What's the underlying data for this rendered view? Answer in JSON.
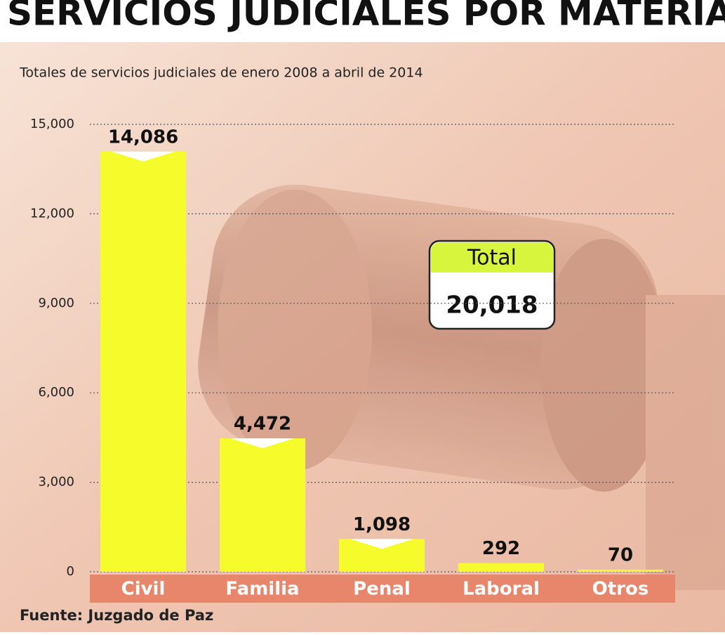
{
  "chart_data": {
    "type": "bar",
    "title": "SERVICIOS JUDICIALES POR MATERIA",
    "subtitle": "Totales de servicios judiciales de enero 2008 a abril de 2014",
    "categories": [
      "Civil",
      "Familia",
      "Penal",
      "Laboral",
      "Otros"
    ],
    "values": [
      14086,
      4472,
      1098,
      292,
      70
    ],
    "value_labels": [
      "14,086",
      "4,472",
      "1,098",
      "292",
      "70"
    ],
    "color": "#f6fb2c",
    "ylim": [
      0,
      15000
    ],
    "yticks": [
      0,
      {
        "value": 3000,
        "label": "3,000"
      },
      {
        "value": 6000,
        "label": "6,000"
      },
      {
        "value": 9000,
        "label": "9,000"
      },
      {
        "value": 12000,
        "label": "12,000"
      },
      {
        "value": 15000,
        "label": "15,000"
      }
    ],
    "grid": true,
    "total": {
      "label": "Total",
      "value": {
        "value": 20018,
        "label": "20,018"
      }
    },
    "source": "Fuente: Juzgado de Paz"
  }
}
